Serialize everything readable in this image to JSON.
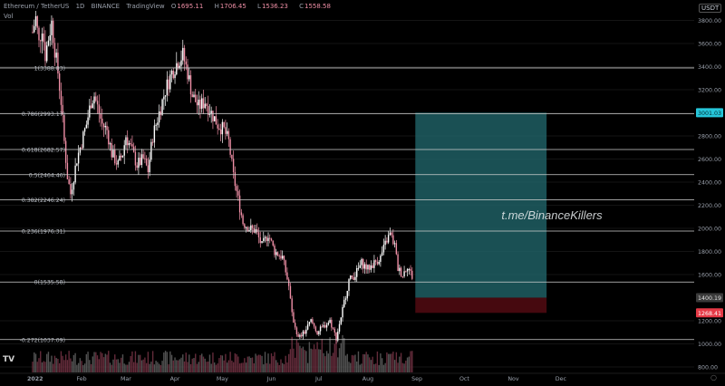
{
  "header": {
    "symbol": "Ethereum / TetherUS",
    "interval": "1D",
    "exchange": "BINANCE",
    "platform": "TradingView",
    "ohlc": [
      {
        "key": "O",
        "value": "1695.11"
      },
      {
        "key": "H",
        "value": "1706.45"
      },
      {
        "key": "L",
        "value": "1536.23"
      },
      {
        "key": "C",
        "value": "1558.58"
      }
    ],
    "volume_label": "Vol"
  },
  "axis_units": "USDT",
  "watermark": "t.me/BinanceKillers",
  "tv_logo": "TV",
  "settings_icon": "○",
  "colors": {
    "background": "#000000",
    "candle_up": "#ffffff",
    "candle_down": "#ef8fa6",
    "fib_line": "#cfcfcf",
    "target_zone": "#1f5e63",
    "stop_zone": "#4a0a10",
    "target_badge": "#26c6da",
    "entry_badge": "#3a3a3a",
    "stop_badge": "#e53946"
  },
  "chart_data": {
    "type": "candlestick",
    "title": "Ethereum / TetherUS 1D BINANCE",
    "yaxis": {
      "ticks": [
        3800,
        3600,
        3400,
        3200,
        3000,
        2800,
        2600,
        2400,
        2200,
        2000,
        1800,
        1600,
        1200,
        1000,
        800
      ],
      "tick_labels": [
        "3800.00",
        "3600.00",
        "3400.00",
        "3200.00",
        "3000.00",
        "2800.00",
        "2600.00",
        "2400.00",
        "2200.00",
        "2000.00",
        "1800.00",
        "1600.00",
        "1200.00",
        "1000.00",
        "800.00"
      ]
    },
    "xaxis": {
      "labels": [
        {
          "label": "2022",
          "date": "2022-01-01"
        },
        {
          "label": "Feb",
          "date": "2022-02-01"
        },
        {
          "label": "Mar",
          "date": "2022-03-01"
        },
        {
          "label": "Apr",
          "date": "2022-04-01"
        },
        {
          "label": "May",
          "date": "2022-05-01"
        },
        {
          "label": "Jun",
          "date": "2022-06-01"
        },
        {
          "label": "Jul",
          "date": "2022-07-01"
        },
        {
          "label": "Aug",
          "date": "2022-08-01"
        },
        {
          "label": "Sep",
          "date": "2022-09-01"
        },
        {
          "label": "Oct",
          "date": "2022-10-01"
        },
        {
          "label": "Nov",
          "date": "2022-11-01"
        },
        {
          "label": "Dec",
          "date": "2022-12-01"
        }
      ]
    },
    "fib_levels": [
      {
        "label": "1(3388.83)",
        "price": 3388.83
      },
      {
        "label": "0.786(2993.17)",
        "price": 2993.17
      },
      {
        "label": "0.618(2682.57)",
        "price": 2682.57
      },
      {
        "label": "0.5(2464.46)",
        "price": 2464.46
      },
      {
        "label": "0.382(2246.24)",
        "price": 2246.24
      },
      {
        "label": "0.236(1976.31)",
        "price": 1976.31
      },
      {
        "label": "0(1535.58)",
        "price": 1535.58
      },
      {
        "label": "-0.272(1037.09)",
        "price": 1037.09
      }
    ],
    "position": {
      "start_date": "2022-08-31",
      "end_date": "2022-11-22",
      "target": {
        "price": 3001.03,
        "label": "3001.03"
      },
      "entry": {
        "price": 1400.19,
        "label": "1400.19"
      },
      "stop": {
        "price": 1268.41,
        "label": "1268.41"
      }
    },
    "price_path": [
      [
        "2022-01-01",
        3700
      ],
      [
        "2022-01-03",
        3820
      ],
      [
        "2022-01-05",
        3600
      ],
      [
        "2022-01-07",
        3750
      ],
      [
        "2022-01-09",
        3500
      ],
      [
        "2022-01-11",
        3650
      ],
      [
        "2022-01-13",
        3780
      ],
      [
        "2022-01-15",
        3550
      ],
      [
        "2022-01-17",
        3350
      ],
      [
        "2022-01-19",
        3100
      ],
      [
        "2022-01-21",
        2750
      ],
      [
        "2022-01-23",
        2450
      ],
      [
        "2022-01-25",
        2300
      ],
      [
        "2022-01-27",
        2450
      ],
      [
        "2022-01-29",
        2600
      ],
      [
        "2022-02-01",
        2750
      ],
      [
        "2022-02-04",
        2900
      ],
      [
        "2022-02-07",
        3100
      ],
      [
        "2022-02-09",
        3150
      ],
      [
        "2022-02-11",
        3050
      ],
      [
        "2022-02-14",
        2900
      ],
      [
        "2022-02-17",
        2850
      ],
      [
        "2022-02-20",
        2650
      ],
      [
        "2022-02-24",
        2550
      ],
      [
        "2022-02-27",
        2650
      ],
      [
        "2022-03-01",
        2800
      ],
      [
        "2022-03-04",
        2700
      ],
      [
        "2022-03-08",
        2550
      ],
      [
        "2022-03-12",
        2600
      ],
      [
        "2022-03-15",
        2500
      ],
      [
        "2022-03-18",
        2800
      ],
      [
        "2022-03-22",
        3000
      ],
      [
        "2022-03-26",
        3200
      ],
      [
        "2022-03-30",
        3350
      ],
      [
        "2022-04-03",
        3450
      ],
      [
        "2022-04-06",
        3500
      ],
      [
        "2022-04-09",
        3350
      ],
      [
        "2022-04-12",
        3150
      ],
      [
        "2022-04-16",
        3050
      ],
      [
        "2022-04-20",
        3100
      ],
      [
        "2022-04-24",
        3000
      ],
      [
        "2022-04-28",
        2900
      ],
      [
        "2022-05-02",
        2850
      ],
      [
        "2022-05-05",
        2750
      ],
      [
        "2022-05-08",
        2450
      ],
      [
        "2022-05-11",
        2250
      ],
      [
        "2022-05-14",
        2050
      ],
      [
        "2022-05-18",
        2000
      ],
      [
        "2022-05-22",
        1980
      ],
      [
        "2022-05-26",
        1850
      ],
      [
        "2022-05-30",
        1950
      ],
      [
        "2022-06-03",
        1800
      ],
      [
        "2022-06-08",
        1750
      ],
      [
        "2022-06-12",
        1500
      ],
      [
        "2022-06-14",
        1250
      ],
      [
        "2022-06-18",
        1050
      ],
      [
        "2022-06-22",
        1100
      ],
      [
        "2022-06-26",
        1200
      ],
      [
        "2022-06-30",
        1100
      ],
      [
        "2022-07-04",
        1150
      ],
      [
        "2022-07-08",
        1200
      ],
      [
        "2022-07-12",
        1050
      ],
      [
        "2022-07-16",
        1300
      ],
      [
        "2022-07-20",
        1550
      ],
      [
        "2022-07-24",
        1600
      ],
      [
        "2022-07-28",
        1700
      ],
      [
        "2022-08-01",
        1650
      ],
      [
        "2022-08-05",
        1700
      ],
      [
        "2022-08-09",
        1750
      ],
      [
        "2022-08-13",
        1900
      ],
      [
        "2022-08-15",
        1950
      ],
      [
        "2022-08-18",
        1850
      ],
      [
        "2022-08-20",
        1650
      ],
      [
        "2022-08-23",
        1600
      ],
      [
        "2022-08-26",
        1680
      ],
      [
        "2022-08-29",
        1580
      ]
    ]
  }
}
